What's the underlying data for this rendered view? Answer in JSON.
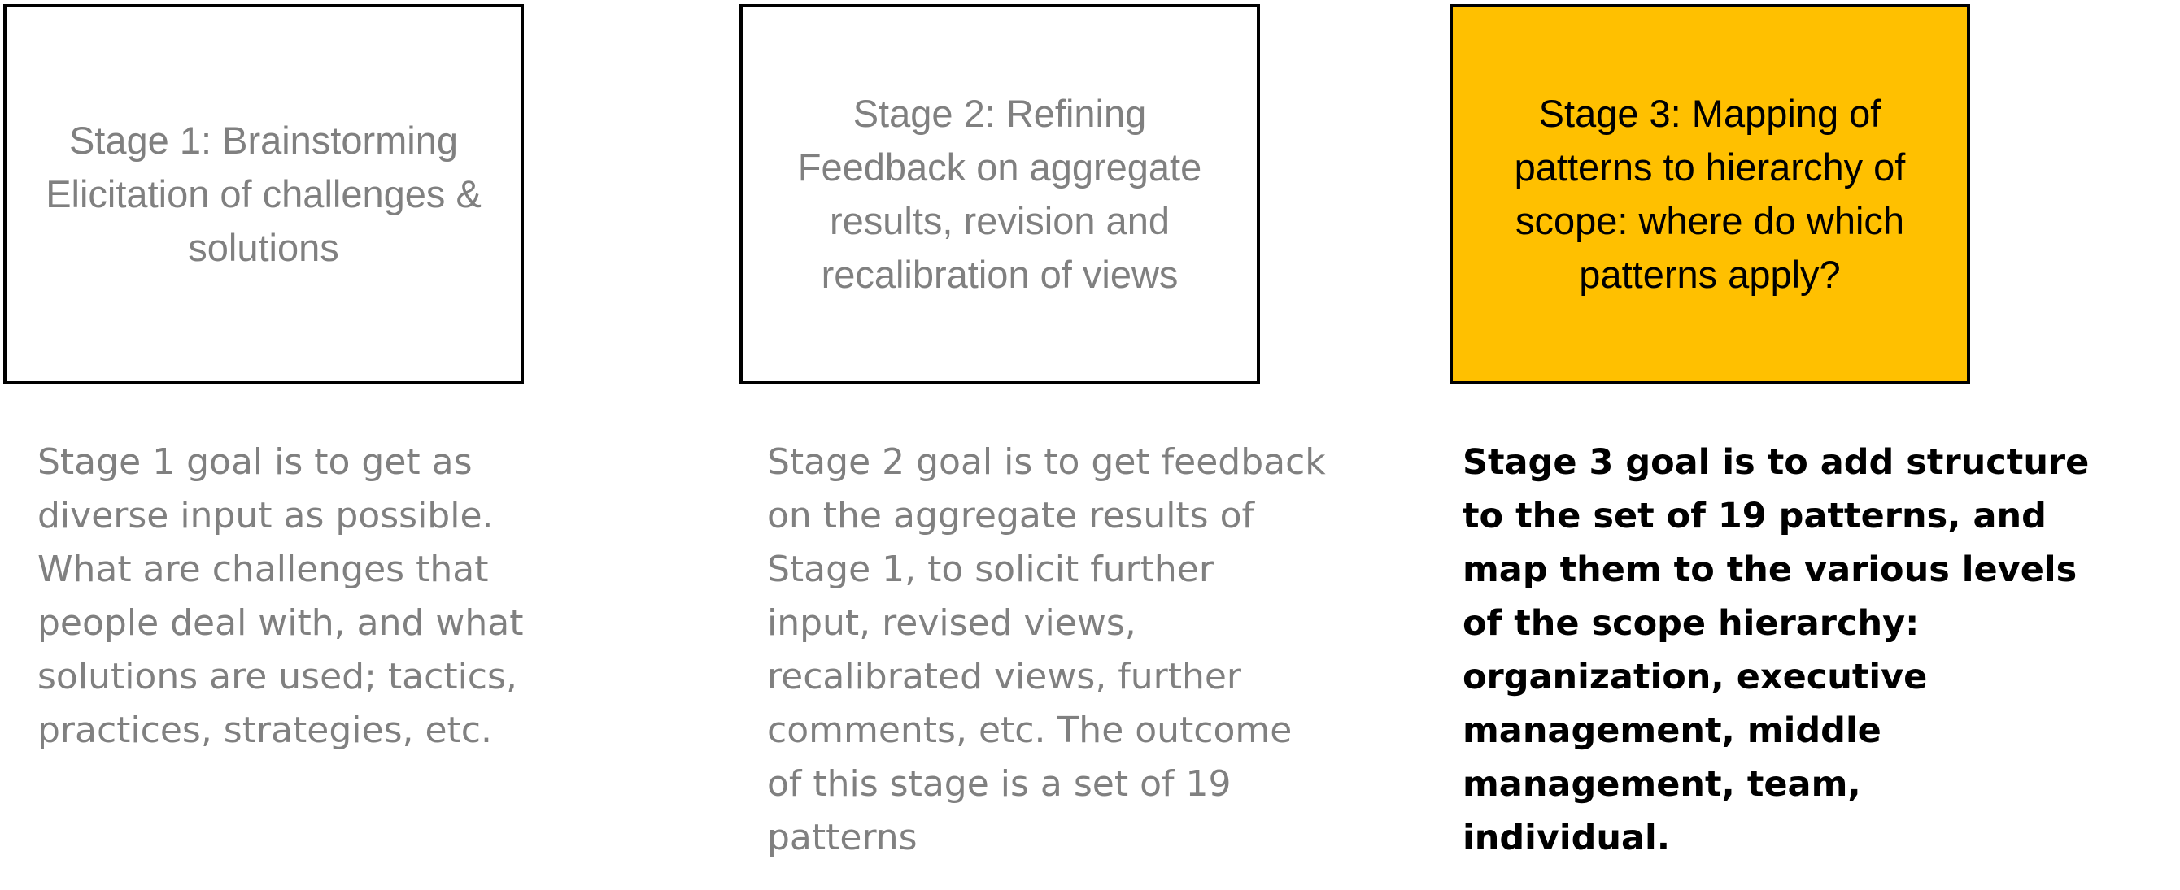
{
  "stages": [
    {
      "box_text": "Stage 1: Brainstorming\nElicitation of challenges &\nsolutions",
      "description": "Stage 1 goal is to get as\ndiverse input as possible.\nWhat are challenges that\npeople deal with, and what\nsolutions are used; tactics,\npractices, strategies, etc."
    },
    {
      "box_text": "Stage 2: Refining\nFeedback on aggregate\nresults, revision and\nrecalibration of views",
      "description": "Stage 2 goal is to get feedback\non the aggregate results of\nStage 1, to solicit further\ninput, revised views,\nrecalibrated views, further\ncomments, etc. The outcome\nof this stage is a set of 19\npatterns"
    },
    {
      "box_text": "Stage 3: Mapping of\npatterns to hierarchy of\nscope: where do which\npatterns apply?",
      "description": "Stage 3 goal is to add structure\nto the set of 19 patterns, and\nmap them to the various levels\nof the scope hierarchy:\norganization, executive\nmanagement, middle\nmanagement, team,\nindividual."
    }
  ],
  "colors": {
    "highlight_fill": "#ffc000",
    "muted_text": "#808080",
    "active_text": "#000000",
    "border": "#000000"
  }
}
